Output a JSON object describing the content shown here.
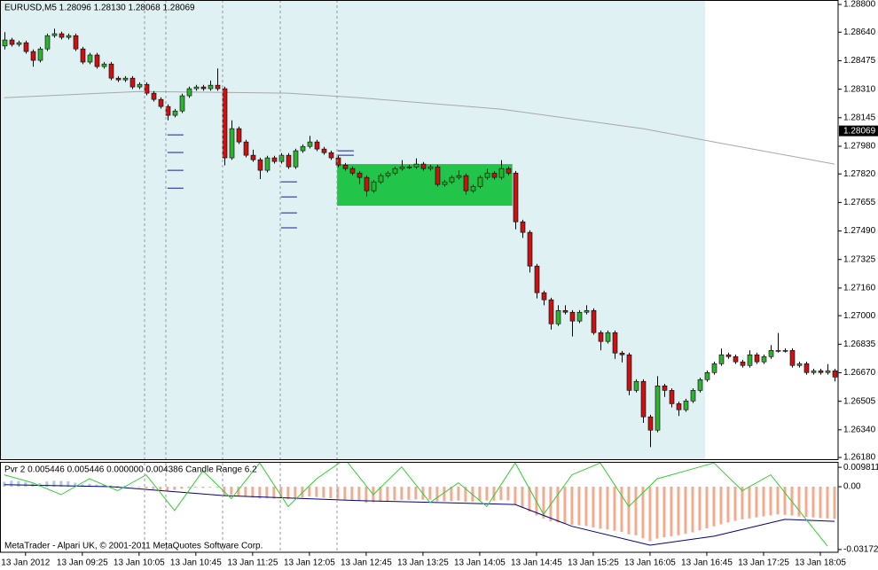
{
  "chart_data": [
    {
      "type": "candlestick",
      "title": "EURUSD,M5  1.28096 1.28130 1.28068 1.28069",
      "up_color": "#2cb52c",
      "down_color": "#d01010",
      "ma_color": "#a8a8a8",
      "zone_color": "#22c44a",
      "level_color": "#1a1aa0",
      "xlim": [
        -0.6,
        117.5
      ],
      "ylim": [
        1.2617,
        1.28826
      ],
      "yticks": [
        {
          "value": 1.288,
          "label": "1.28800"
        },
        {
          "value": 1.2864,
          "label": "1.28640"
        },
        1.28475,
        {
          "value": 1.2831,
          "label": "1.28310"
        },
        1.28145,
        {
          "value": 1.2798,
          "label": "1.27980"
        },
        {
          "value": 1.2782,
          "label": "1.27820"
        },
        1.27655,
        {
          "value": 1.2749,
          "label": "1.27490"
        },
        1.27325,
        {
          "value": 1.2716,
          "label": "1.27160"
        },
        {
          "value": 1.27,
          "label": "1.27000"
        },
        1.26835,
        {
          "value": 1.2667,
          "label": "1.26670"
        },
        1.26505,
        {
          "value": 1.2634,
          "label": "1.26340"
        },
        {
          "value": 1.2618,
          "label": "1.26180"
        }
      ],
      "xticks": [
        {
          "value": 3,
          "label": "13 Jan 2012"
        },
        {
          "value": 11,
          "label": "13 Jan 09:25"
        },
        {
          "value": 19,
          "label": "13 Jan 10:05"
        },
        {
          "value": 27,
          "label": "13 Jan 10:45"
        },
        {
          "value": 35,
          "label": "13 Jan 11:25"
        },
        {
          "value": 43,
          "label": "13 Jan 12:05"
        },
        {
          "value": 51,
          "label": "13 Jan 12:45"
        },
        {
          "value": 59,
          "label": "13 Jan 13:25"
        },
        {
          "value": 67,
          "label": "13 Jan 14:05"
        },
        {
          "value": 75,
          "label": "13 Jan 14:45"
        },
        {
          "value": 83,
          "label": "13 Jan 15:25"
        },
        {
          "value": 91,
          "label": "13 Jan 16:05"
        },
        {
          "value": 99,
          "label": "13 Jan 16:45"
        },
        {
          "value": 107,
          "label": "13 Jan 17:25"
        },
        {
          "value": 115,
          "label": "13 Jan 18:05"
        }
      ],
      "bid": 1.28069,
      "ohlc": [
        [
          1.2856,
          1.2864,
          1.2854,
          1.28595
        ],
        [
          1.28595,
          1.28607,
          1.28557,
          1.28569
        ],
        [
          1.28569,
          1.28591,
          1.28557,
          1.28579
        ],
        [
          1.28579,
          1.28591,
          1.28516,
          1.28528
        ],
        [
          1.28528,
          1.2854,
          1.2844,
          1.28477
        ],
        [
          1.28477,
          1.28555,
          1.28465,
          1.28543
        ],
        [
          1.28543,
          1.28632,
          1.28531,
          1.2862
        ],
        [
          1.2862,
          1.2866,
          1.28608,
          1.28631
        ],
        [
          1.28631,
          1.28643,
          1.28598,
          1.2861
        ],
        [
          1.2861,
          1.28632,
          1.28598,
          1.2862
        ],
        [
          1.2862,
          1.28632,
          1.28531,
          1.28543
        ],
        [
          1.28543,
          1.28555,
          1.28455,
          1.28467
        ],
        [
          1.28467,
          1.2852,
          1.28455,
          1.28508
        ],
        [
          1.28508,
          1.2852,
          1.28429,
          1.28441
        ],
        [
          1.28441,
          1.28468,
          1.28429,
          1.28456
        ],
        [
          1.28456,
          1.28468,
          1.28362,
          1.28374
        ],
        [
          1.28374,
          1.28386,
          1.28352,
          1.28364
        ],
        [
          1.28364,
          1.28386,
          1.28352,
          1.28374
        ],
        [
          1.28374,
          1.28386,
          1.28311,
          1.28323
        ],
        [
          1.28323,
          1.2835,
          1.28311,
          1.28338
        ],
        [
          1.28338,
          1.2835,
          1.28275,
          1.28287
        ],
        [
          1.28287,
          1.28299,
          1.28239,
          1.28251
        ],
        [
          1.28251,
          1.28263,
          1.28198,
          1.2821
        ],
        [
          1.2821,
          1.28222,
          1.2813,
          1.28159
        ],
        [
          1.28159,
          1.28196,
          1.28147,
          1.28184
        ],
        [
          1.28184,
          1.28284,
          1.28172,
          1.28272
        ],
        [
          1.28272,
          1.28325,
          1.2826,
          1.28313
        ],
        [
          1.28313,
          1.28335,
          1.28301,
          1.28323
        ],
        [
          1.28323,
          1.28335,
          1.28301,
          1.28313
        ],
        [
          1.28313,
          1.2836,
          1.28301,
          1.28333
        ],
        [
          1.28333,
          1.2843,
          1.28301,
          1.28313
        ],
        [
          1.28313,
          1.28325,
          1.2787,
          1.27913
        ],
        [
          1.27913,
          1.2813,
          1.27901,
          1.28082
        ],
        [
          1.28082,
          1.28094,
          1.27993,
          1.28005
        ],
        [
          1.28005,
          1.28017,
          1.27916,
          1.27928
        ],
        [
          1.27928,
          1.2796,
          1.2789,
          1.27902
        ],
        [
          1.27902,
          1.27914,
          1.2779,
          1.27841
        ],
        [
          1.27841,
          1.27925,
          1.27829,
          1.27913
        ],
        [
          1.27913,
          1.27925,
          1.2788,
          1.27892
        ],
        [
          1.27892,
          1.2794,
          1.2788,
          1.27928
        ],
        [
          1.27928,
          1.2794,
          1.27849,
          1.27861
        ],
        [
          1.27861,
          1.27966,
          1.27849,
          1.27954
        ],
        [
          1.27954,
          1.27991,
          1.27942,
          1.27979
        ],
        [
          1.27979,
          1.2804,
          1.27967,
          1.28005
        ],
        [
          1.28005,
          1.28017,
          1.27952,
          1.27964
        ],
        [
          1.27964,
          1.27976,
          1.27931,
          1.27943
        ],
        [
          1.27943,
          1.27955,
          1.27901,
          1.27913
        ],
        [
          1.27913,
          1.27925,
          1.27859,
          1.27871
        ],
        [
          1.27871,
          1.27883,
          1.27839,
          1.27851
        ],
        [
          1.27851,
          1.27863,
          1.27813,
          1.27825
        ],
        [
          1.27825,
          1.27837,
          1.2776,
          1.278
        ],
        [
          1.278,
          1.27812,
          1.2769,
          1.27723
        ],
        [
          1.27723,
          1.27786,
          1.27711,
          1.27774
        ],
        [
          1.27774,
          1.27822,
          1.27762,
          1.2781
        ],
        [
          1.2781,
          1.27837,
          1.27798,
          1.27825
        ],
        [
          1.27825,
          1.27863,
          1.27813,
          1.27851
        ],
        [
          1.27851,
          1.279,
          1.27839,
          1.27861
        ],
        [
          1.27861,
          1.27873,
          1.27849,
          1.27861
        ],
        [
          1.27861,
          1.2791,
          1.27849,
          1.27877
        ],
        [
          1.27877,
          1.27889,
          1.27839,
          1.27851
        ],
        [
          1.27851,
          1.27873,
          1.27839,
          1.27861
        ],
        [
          1.27861,
          1.27873,
          1.27747,
          1.27759
        ],
        [
          1.27759,
          1.27786,
          1.27747,
          1.27774
        ],
        [
          1.27774,
          1.27812,
          1.27762,
          1.278
        ],
        [
          1.278,
          1.2784,
          1.27788,
          1.2781
        ],
        [
          1.2781,
          1.27822,
          1.277,
          1.27723
        ],
        [
          1.27723,
          1.2776,
          1.27711,
          1.27748
        ],
        [
          1.27748,
          1.27812,
          1.27736,
          1.278
        ],
        [
          1.278,
          1.2785,
          1.27788,
          1.27825
        ],
        [
          1.27825,
          1.27837,
          1.27788,
          1.278
        ],
        [
          1.278,
          1.279,
          1.27788,
          1.27851
        ],
        [
          1.27851,
          1.27863,
          1.27813,
          1.27825
        ],
        [
          1.27825,
          1.27837,
          1.275,
          1.27543
        ],
        [
          1.27543,
          1.27555,
          1.2745,
          1.27482
        ],
        [
          1.27482,
          1.27494,
          1.2725,
          1.27287
        ],
        [
          1.27287,
          1.27299,
          1.271,
          1.27133
        ],
        [
          1.27133,
          1.27145,
          1.2706,
          1.27092
        ],
        [
          1.27092,
          1.27104,
          1.2692,
          1.26953
        ],
        [
          1.26953,
          1.2706,
          1.26941,
          1.2703
        ],
        [
          1.2703,
          1.2706,
          1.27008,
          1.2702
        ],
        [
          1.2702,
          1.27032,
          1.2688,
          1.26969
        ],
        [
          1.26969,
          1.27032,
          1.26957,
          1.2702
        ],
        [
          1.2702,
          1.2706,
          1.27008,
          1.2703
        ],
        [
          1.2703,
          1.27042,
          1.2689,
          1.26902
        ],
        [
          1.26902,
          1.26914,
          1.268,
          1.26851
        ],
        [
          1.26851,
          1.26914,
          1.26839,
          1.26902
        ],
        [
          1.26902,
          1.26914,
          1.2675,
          1.26784
        ],
        [
          1.26784,
          1.26796,
          1.2673,
          1.26774
        ],
        [
          1.26774,
          1.26786,
          1.2654,
          1.26568
        ],
        [
          1.26568,
          1.26632,
          1.26556,
          1.2662
        ],
        [
          1.2662,
          1.26632,
          1.2638,
          1.26415
        ],
        [
          1.26415,
          1.26427,
          1.2624,
          1.26338
        ],
        [
          1.26338,
          1.2665,
          1.26326,
          1.26594
        ],
        [
          1.26594,
          1.26606,
          1.2653,
          1.26568
        ],
        [
          1.26568,
          1.2658,
          1.2647,
          1.26491
        ],
        [
          1.26491,
          1.26503,
          1.2642,
          1.26456
        ],
        [
          1.26456,
          1.26519,
          1.26444,
          1.26507
        ],
        [
          1.26507,
          1.2658,
          1.26495,
          1.26568
        ],
        [
          1.26568,
          1.26642,
          1.26556,
          1.2663
        ],
        [
          1.2663,
          1.26683,
          1.26618,
          1.26671
        ],
        [
          1.26671,
          1.26734,
          1.26659,
          1.26722
        ],
        [
          1.26722,
          1.2681,
          1.2671,
          1.26774
        ],
        [
          1.26774,
          1.26786,
          1.26751,
          1.26763
        ],
        [
          1.26763,
          1.26775,
          1.26721,
          1.26733
        ],
        [
          1.26733,
          1.26745,
          1.267,
          1.26712
        ],
        [
          1.26712,
          1.268,
          1.267,
          1.26774
        ],
        [
          1.26774,
          1.26786,
          1.26721,
          1.26733
        ],
        [
          1.26733,
          1.26775,
          1.26721,
          1.26763
        ],
        [
          1.26763,
          1.2683,
          1.26751,
          1.26799
        ],
        [
          1.26799,
          1.269,
          1.26787,
          1.26799
        ],
        [
          1.26799,
          1.26811,
          1.26787,
          1.26799
        ],
        [
          1.26799,
          1.26811,
          1.267,
          1.26712
        ],
        [
          1.26712,
          1.26734,
          1.267,
          1.26722
        ],
        [
          1.26722,
          1.26734,
          1.26659,
          1.26671
        ],
        [
          1.26671,
          1.26693,
          1.26659,
          1.26681
        ],
        [
          1.26681,
          1.26693,
          1.26659,
          1.26671
        ],
        [
          1.26671,
          1.2672,
          1.26659,
          1.26681
        ],
        [
          1.26681,
          1.26693,
          1.2662,
          1.26645
        ]
      ],
      "ma": {
        "x": [
          0,
          19,
          40,
          50,
          70,
          90,
          100,
          117
        ],
        "values": [
          1.28261,
          1.28297,
          1.28287,
          1.28261,
          1.28195,
          1.28082,
          1.28005,
          1.27877
        ]
      },
      "zone": {
        "x": [
          46.9,
          71.6
        ],
        "y": [
          1.27636,
          1.27877
        ]
      },
      "levels": [
        {
          "index": 23,
          "values": [
            1.28046,
            1.27944,
            1.27841,
            1.27738
          ]
        },
        {
          "index": 39,
          "values": [
            1.27774,
            1.27687,
            1.27595,
            1.27508
          ]
        },
        {
          "index": 47,
          "values": [
            1.27954,
            1.27928
          ]
        }
      ]
    },
    {
      "type": "indicator",
      "title": "Pvr 2 0.005446 0.005446 0.000000 0.004386  Candle Range 6.2",
      "annotation": "MetaTrader - Alpari UK, © 2001-2011 MetaQuotes Software Corp.",
      "xlim": [
        -0.6,
        117.5
      ],
      "ylim": [
        -0.0331,
        0.0121
      ],
      "yticks": [
        0.009811,
        {
          "value": 0,
          "label": "0.00"
        },
        -0.03172
      ],
      "up_color": "#a8c8ee",
      "down_color": "#f6a98c",
      "histogram": [
        0.0025,
        0.003,
        0.0028,
        0.0022,
        0.0015,
        0.0018,
        0.0026,
        0.003,
        0.0029,
        0.0027,
        0.002,
        0.0012,
        0.0015,
        0.001,
        0.0012,
        0.0006,
        0.0004,
        0.0005,
        0.0002,
        -0.0004,
        -0.0008,
        -0.0012,
        -0.0016,
        -0.002,
        -0.0016,
        -0.001,
        -0.0006,
        -0.0005,
        -0.0006,
        -0.0004,
        -0.0005,
        -0.0045,
        -0.004,
        -0.0045,
        -0.005,
        -0.0055,
        -0.006,
        -0.0058,
        -0.006,
        -0.0058,
        -0.0062,
        -0.0058,
        -0.0055,
        -0.005,
        -0.0052,
        -0.0055,
        -0.0058,
        -0.0062,
        -0.0065,
        -0.0068,
        -0.0072,
        -0.008,
        -0.0078,
        -0.0075,
        -0.0072,
        -0.0068,
        -0.0066,
        -0.0066,
        -0.0064,
        -0.0066,
        -0.0066,
        -0.0074,
        -0.0073,
        -0.0072,
        -0.007,
        -0.0076,
        -0.0075,
        -0.0072,
        -0.007,
        -0.0071,
        -0.0068,
        -0.0069,
        -0.009,
        -0.0105,
        -0.0125,
        -0.0145,
        -0.016,
        -0.0175,
        -0.018,
        -0.0185,
        -0.0192,
        -0.0195,
        -0.0198,
        -0.0205,
        -0.0212,
        -0.0215,
        -0.0222,
        -0.0228,
        -0.024,
        -0.0245,
        -0.026,
        -0.0275,
        -0.0262,
        -0.0255,
        -0.025,
        -0.0245,
        -0.0238,
        -0.023,
        -0.022,
        -0.021,
        -0.02,
        -0.019,
        -0.018,
        -0.0172,
        -0.0165,
        -0.016,
        -0.0155,
        -0.015,
        -0.0145,
        -0.014,
        -0.0142,
        -0.0145,
        -0.015,
        -0.0152,
        -0.0155,
        -0.0158,
        -0.016,
        -0.0162
      ],
      "series": [
        {
          "color": "#000080",
          "x": [
            0,
            15,
            31,
            50,
            72,
            80,
            91,
            100,
            110,
            117
          ],
          "values": [
            0.001,
            0.0,
            -0.0045,
            -0.007,
            -0.009,
            -0.02,
            -0.0295,
            -0.025,
            -0.0165,
            -0.0175
          ]
        },
        {
          "color": "#32cd32",
          "x": [
            0,
            4,
            8,
            12,
            16,
            20,
            24,
            28,
            32,
            36,
            40,
            44,
            48,
            52,
            56,
            60,
            64,
            68,
            72,
            76,
            80,
            84,
            88,
            92,
            96,
            100,
            104,
            108,
            112,
            116
          ],
          "values": [
            0.006,
            0.002,
            -0.004,
            0.004,
            -0.002,
            0.006,
            -0.012,
            0.008,
            -0.006,
            0.012,
            -0.01,
            0.004,
            0.014,
            -0.004,
            0.01,
            -0.008,
            0.002,
            -0.01,
            0.012,
            -0.014,
            0.006,
            0.012,
            -0.01,
            0.004,
            0.008,
            0.012,
            -0.002,
            0.006,
            -0.012,
            -0.03
          ]
        }
      ]
    }
  ]
}
